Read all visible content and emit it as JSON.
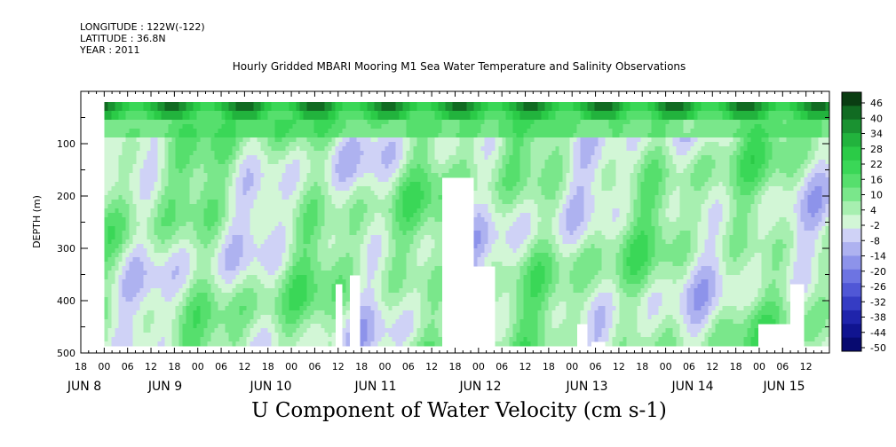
{
  "header": {
    "longitude": "LONGITUDE : 122W(-122)",
    "latitude": "LATITUDE : 36.8N",
    "year": "YEAR : 2011"
  },
  "chart_data": {
    "type": "heatmap",
    "title": "Hourly Gridded MBARI Mooring M1 Sea Water Temperature and Salinity Observations",
    "variable_label": "U Component of Water Velocity (cm s-1)",
    "ylabel": "DEPTH (m)",
    "ylim": [
      500,
      0
    ],
    "y_reversed": true,
    "y_ticks": [
      100,
      200,
      300,
      400,
      500
    ],
    "x_start": "2011-06-07 18:00",
    "x_end": "2011-06-15 18:00",
    "x_hour_ticks": [
      "18",
      "00",
      "06",
      "12",
      "18",
      "00",
      "06",
      "12",
      "18",
      "00",
      "06",
      "12",
      "18",
      "00",
      "06",
      "12",
      "18",
      "00",
      "06",
      "12",
      "18",
      "00",
      "06",
      "12",
      "18",
      "00",
      "06",
      "12",
      "18",
      "00",
      "06",
      "12"
    ],
    "x_date_labels": [
      "JUN  8",
      "JUN  9",
      "JUN 10",
      "JUN 11",
      "JUN 12",
      "JUN 13",
      "JUN 14",
      "JUN 15"
    ],
    "data_start": "2011-06-08 00:00",
    "data_depth_range": [
      20,
      485
    ],
    "colorbar": {
      "labels": [
        "46",
        "40",
        "34",
        "28",
        "22",
        "16",
        "10",
        "4",
        "-2",
        "-8",
        "-14",
        "-20",
        "-26",
        "-32",
        "-38",
        "-44",
        "-50"
      ],
      "range": [
        -50,
        48
      ],
      "colors": [
        "#0a3d12",
        "#116b22",
        "#1a9231",
        "#22b33d",
        "#2bcb47",
        "#3ad757",
        "#56df6d",
        "#7ae78b",
        "#a7efb0",
        "#d2f6d6",
        "#cfd2f6",
        "#aeb2f0",
        "#8d93ea",
        "#6d74e2",
        "#5057d6",
        "#353cc4",
        "#1f24ab",
        "#101490",
        "#070a70"
      ]
    },
    "dominant_pattern": "alternating bands of +5 to +15 (green) and -2 to -15 (blue/lavender); strongest positive (>28) near surface 20-40 m, especially Jun 10-12; missing data gaps near bottom on Jun 10-11, Jun 13, Jun 14, Jun 15"
  }
}
